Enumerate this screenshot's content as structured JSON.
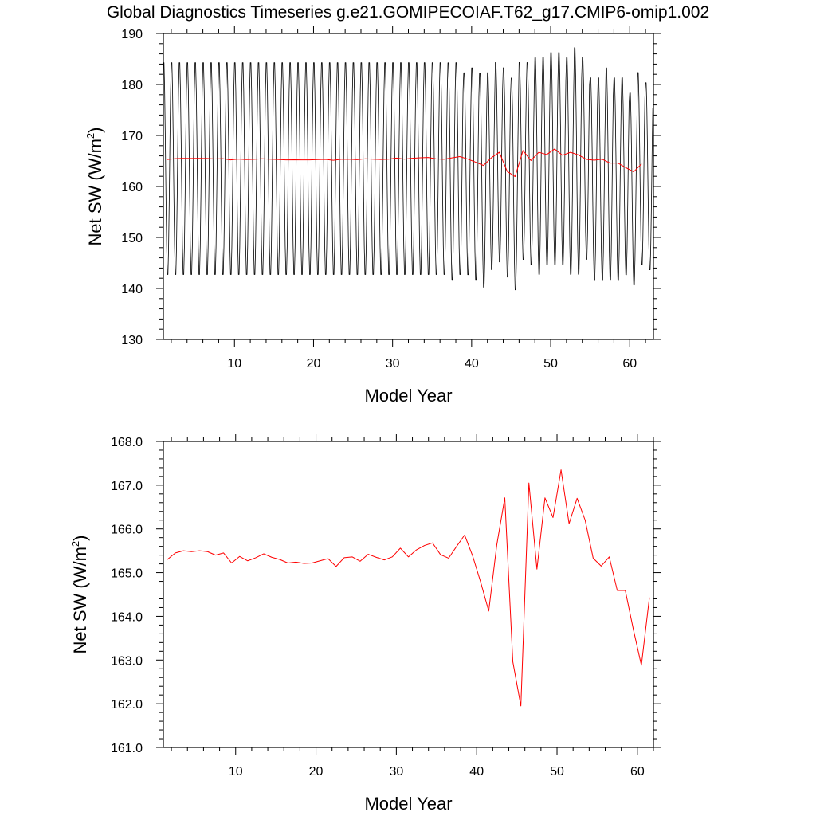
{
  "title": "Global Diagnostics Timeseries g.e21.GOMIPECOIAF.T62_g17.CMIP6-omip1.002",
  "colors": {
    "monthly": "#000000",
    "annual": "#ff0000"
  },
  "chart_data": [
    {
      "type": "line",
      "xlabel": "Model Year",
      "ylabel_main": "Net SW (W/m",
      "ylabel_sup": "2",
      "ylabel_end": ")",
      "xlim": [
        1,
        63
      ],
      "ylim": [
        130,
        190
      ],
      "xticks": [
        10,
        20,
        30,
        40,
        50,
        60
      ],
      "xtick_labels": [
        "10",
        "20",
        "30",
        "40",
        "50",
        "60"
      ],
      "yticks": [
        130,
        140,
        150,
        160,
        170,
        180,
        190
      ],
      "ytick_labels": [
        "130",
        "140",
        "150",
        "160",
        "170",
        "180",
        "190"
      ],
      "series": [
        {
          "role": "monthly",
          "color": "#000000",
          "years": [
            1,
            2,
            3,
            4,
            5,
            6,
            7,
            8,
            9,
            10,
            11,
            12,
            13,
            14,
            15,
            16,
            17,
            18,
            19,
            20,
            21,
            22,
            23,
            24,
            25,
            26,
            27,
            28,
            29,
            30,
            31,
            32,
            33,
            34,
            35,
            36,
            37,
            38,
            39,
            40,
            41,
            42,
            43,
            44,
            45,
            46,
            47,
            48,
            49,
            50,
            51,
            52,
            53,
            54,
            55,
            56,
            57,
            58,
            59,
            60,
            61,
            62
          ],
          "annual_max": [
            185,
            185,
            185,
            185,
            185,
            185,
            185,
            185,
            185,
            185,
            185,
            185,
            185,
            185,
            185,
            185,
            185,
            185,
            185,
            185,
            185,
            185,
            185,
            185,
            185,
            185,
            185,
            185,
            185,
            185,
            185,
            185,
            185,
            185,
            185,
            185,
            185,
            185,
            183,
            184,
            183,
            183,
            185,
            184,
            182,
            185,
            185,
            186,
            186,
            187,
            187,
            186,
            188,
            186,
            182,
            182,
            184,
            182,
            182,
            179,
            183,
            181
          ],
          "annual_min": [
            142,
            142,
            142,
            142,
            142,
            142,
            142,
            142,
            142,
            142,
            142,
            142,
            142,
            142,
            142,
            142,
            142,
            142,
            142,
            142,
            142,
            142,
            142,
            142,
            142,
            142,
            142,
            142,
            142,
            142,
            142,
            142,
            142,
            142,
            142,
            142,
            141,
            142,
            142,
            141,
            139.5,
            143,
            144.5,
            141.5,
            139,
            145,
            144,
            142,
            144,
            144,
            144,
            142,
            142,
            145,
            141,
            141,
            141,
            141,
            142,
            140,
            144,
            143
          ]
        },
        {
          "role": "annual",
          "color": "#ff0000",
          "x": [
            1.5,
            2.5,
            3.5,
            4.5,
            5.5,
            6.5,
            7.5,
            8.5,
            9.5,
            10.5,
            11.5,
            12.5,
            13.5,
            14.5,
            15.5,
            16.5,
            17.5,
            18.5,
            19.5,
            20.5,
            21.5,
            22.5,
            23.5,
            24.5,
            25.5,
            26.5,
            27.5,
            28.5,
            29.5,
            30.5,
            31.5,
            32.5,
            33.5,
            34.5,
            35.5,
            36.5,
            37.5,
            38.5,
            39.5,
            40.5,
            41.5,
            42.5,
            43.5,
            44.5,
            45.5,
            46.5,
            47.5,
            48.5,
            49.5,
            50.5,
            51.5,
            52.5,
            53.5,
            54.5,
            55.5,
            56.5,
            57.5,
            58.5,
            59.5,
            60.5,
            61.5
          ],
          "values": [
            165.3,
            165.45,
            165.5,
            165.48,
            165.5,
            165.48,
            165.4,
            165.45,
            165.22,
            165.37,
            165.27,
            165.34,
            165.43,
            165.35,
            165.3,
            165.22,
            165.24,
            165.21,
            165.22,
            165.27,
            165.32,
            165.14,
            165.34,
            165.36,
            165.26,
            165.42,
            165.35,
            165.29,
            165.36,
            165.56,
            165.36,
            165.52,
            165.62,
            165.68,
            165.41,
            165.33,
            165.6,
            165.86,
            165.38,
            164.78,
            164.12,
            165.63,
            166.71,
            162.96,
            161.95,
            167.05,
            165.08,
            166.71,
            166.26,
            167.35,
            166.12,
            166.7,
            166.2,
            165.33,
            165.15,
            165.36,
            164.59,
            164.59,
            163.7,
            162.88,
            164.43
          ]
        }
      ]
    },
    {
      "type": "line",
      "xlabel": "Model Year",
      "ylabel_main": "Net SW (W/m",
      "ylabel_sup": "2",
      "ylabel_end": ")",
      "xlim": [
        1,
        62
      ],
      "ylim": [
        161,
        168
      ],
      "xticks": [
        10,
        20,
        30,
        40,
        50,
        60
      ],
      "xtick_labels": [
        "10",
        "20",
        "30",
        "40",
        "50",
        "60"
      ],
      "yticks": [
        161,
        162,
        163,
        164,
        165,
        166,
        167,
        168
      ],
      "ytick_labels": [
        "161.0",
        "162.0",
        "163.0",
        "164.0",
        "165.0",
        "166.0",
        "167.0",
        "168.0"
      ],
      "series": [
        {
          "role": "annual",
          "color": "#ff0000",
          "x": [
            1.5,
            2.5,
            3.5,
            4.5,
            5.5,
            6.5,
            7.5,
            8.5,
            9.5,
            10.5,
            11.5,
            12.5,
            13.5,
            14.5,
            15.5,
            16.5,
            17.5,
            18.5,
            19.5,
            20.5,
            21.5,
            22.5,
            23.5,
            24.5,
            25.5,
            26.5,
            27.5,
            28.5,
            29.5,
            30.5,
            31.5,
            32.5,
            33.5,
            34.5,
            35.5,
            36.5,
            37.5,
            38.5,
            39.5,
            40.5,
            41.5,
            42.5,
            43.5,
            44.5,
            45.5,
            46.5,
            47.5,
            48.5,
            49.5,
            50.5,
            51.5,
            52.5,
            53.5,
            54.5,
            55.5,
            56.5,
            57.5,
            58.5,
            59.5,
            60.5,
            61.5
          ],
          "values": [
            165.3,
            165.45,
            165.5,
            165.48,
            165.5,
            165.48,
            165.4,
            165.45,
            165.22,
            165.37,
            165.27,
            165.34,
            165.43,
            165.35,
            165.3,
            165.22,
            165.24,
            165.21,
            165.22,
            165.27,
            165.32,
            165.14,
            165.34,
            165.36,
            165.26,
            165.42,
            165.35,
            165.29,
            165.36,
            165.56,
            165.36,
            165.52,
            165.62,
            165.68,
            165.41,
            165.33,
            165.6,
            165.86,
            165.38,
            164.78,
            164.12,
            165.63,
            166.71,
            162.96,
            161.95,
            167.05,
            165.08,
            166.71,
            166.26,
            167.35,
            166.12,
            166.7,
            166.2,
            165.33,
            165.15,
            165.36,
            164.59,
            164.59,
            163.7,
            162.88,
            164.43
          ]
        }
      ]
    }
  ]
}
